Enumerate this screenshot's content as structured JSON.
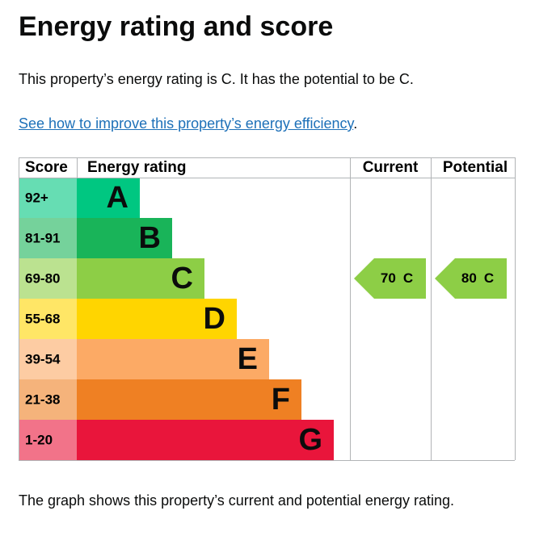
{
  "heading": "Energy rating and score",
  "summary": "This property’s energy rating is C. It has the potential to be C.",
  "link": {
    "text": "See how to improve this property’s energy efficiency",
    "suffix": "."
  },
  "table": {
    "headers": [
      "Score",
      "Energy rating",
      "Current",
      "Potential"
    ],
    "bands": [
      {
        "score": "92+",
        "letter": "A",
        "color": "#00c781",
        "score_color": "#66ddb3"
      },
      {
        "score": "81-91",
        "letter": "B",
        "color": "#19b459",
        "score_color": "#75d29b"
      },
      {
        "score": "69-80",
        "letter": "C",
        "color": "#8dce46",
        "score_color": "#bbe290"
      },
      {
        "score": "55-68",
        "letter": "D",
        "color": "#ffd500",
        "score_color": "#ffe666"
      },
      {
        "score": "39-54",
        "letter": "E",
        "color": "#fcaa65",
        "score_color": "#fdcca3"
      },
      {
        "score": "21-38",
        "letter": "F",
        "color": "#ef8023",
        "score_color": "#f5b37b"
      },
      {
        "score": "1-20",
        "letter": "G",
        "color": "#e9153b",
        "score_color": "#f27389"
      }
    ],
    "current": {
      "score": 70,
      "rating": "C"
    },
    "potential": {
      "score": 80,
      "rating": "C"
    }
  },
  "footer": "The graph shows this property’s current and potential energy rating."
}
